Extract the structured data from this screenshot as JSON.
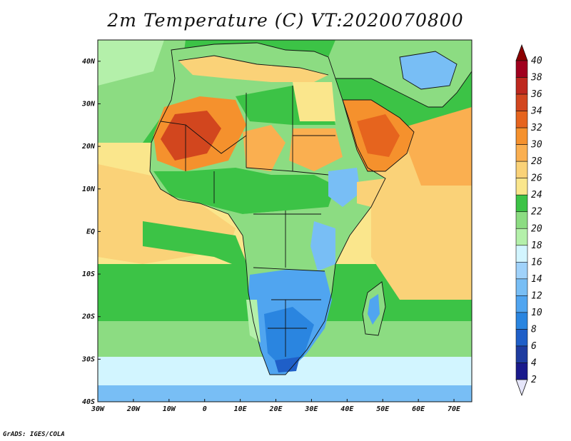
{
  "title": "2m Temperature (C) VT:2020070800",
  "credit": "GrADS: IGES/COLA",
  "map": {
    "lon_range": [
      -30,
      75
    ],
    "lat_range": [
      -40,
      45
    ],
    "lon_ticks": [
      {
        "value": -30,
        "label": "30W"
      },
      {
        "value": -20,
        "label": "20W"
      },
      {
        "value": -10,
        "label": "10W"
      },
      {
        "value": 0,
        "label": "0"
      },
      {
        "value": 10,
        "label": "10E"
      },
      {
        "value": 20,
        "label": "20E"
      },
      {
        "value": 30,
        "label": "30E"
      },
      {
        "value": 40,
        "label": "40E"
      },
      {
        "value": 50,
        "label": "50E"
      },
      {
        "value": 60,
        "label": "60E"
      },
      {
        "value": 70,
        "label": "70E"
      }
    ],
    "lat_ticks": [
      {
        "value": 40,
        "label": "40N"
      },
      {
        "value": 30,
        "label": "30N"
      },
      {
        "value": 20,
        "label": "20N"
      },
      {
        "value": 10,
        "label": "10N"
      },
      {
        "value": 0,
        "label": "EQ"
      },
      {
        "value": -10,
        "label": "10S"
      },
      {
        "value": -20,
        "label": "20S"
      },
      {
        "value": -30,
        "label": "30S"
      },
      {
        "value": -40,
        "label": "40S"
      }
    ]
  },
  "colorbar": {
    "levels": [
      "2",
      "4",
      "6",
      "8",
      "10",
      "12",
      "14",
      "16",
      "18",
      "20",
      "22",
      "24",
      "26",
      "28",
      "30",
      "32",
      "34",
      "36",
      "38",
      "40"
    ],
    "colors": [
      "#e6e6fa",
      "#1a1a8c",
      "#1e3ca0",
      "#1f5fc8",
      "#2a85e0",
      "#50a5f0",
      "#78bef5",
      "#a0d2fa",
      "#d2f5ff",
      "#b4f0aa",
      "#8cdc82",
      "#3cc346",
      "#fae68c",
      "#fad278",
      "#faaf50",
      "#f5912d",
      "#e6641e",
      "#d2461e",
      "#be281e",
      "#a0001e",
      "#8b0000"
    ]
  },
  "fields": {
    "ocean_colors": [
      "#fae68c",
      "#fad278",
      "#faaf50",
      "#3cc346",
      "#8cdc82",
      "#b4f0aa",
      "#d2f5ff",
      "#a0d2fa",
      "#78bef5"
    ],
    "land_colors": [
      "#3cc346",
      "#8cdc82",
      "#fad278",
      "#faaf50",
      "#f5912d",
      "#e6641e",
      "#d2461e",
      "#78bef5",
      "#50a5f0",
      "#2a85e0",
      "#1f5fc8"
    ]
  }
}
